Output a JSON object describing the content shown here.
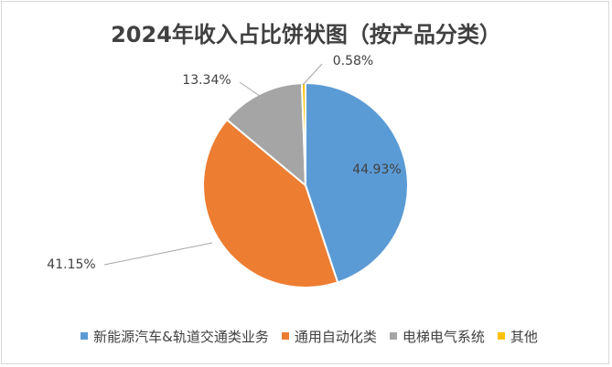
{
  "chart_data": {
    "type": "pie",
    "title": "2024年收入占比饼状图（按产品分类）",
    "categories": [
      "新能源汽车&轨道交通类业务",
      "通用自动化类",
      "电梯电气系统",
      "其他"
    ],
    "values": [
      44.93,
      41.15,
      13.34,
      0.58
    ],
    "labels": [
      "44.93%",
      "41.15%",
      "13.34%",
      "0.58%"
    ],
    "colors": [
      "#5b9bd5",
      "#ed7d31",
      "#a5a5a5",
      "#ffc000"
    ],
    "legend_position": "bottom"
  }
}
